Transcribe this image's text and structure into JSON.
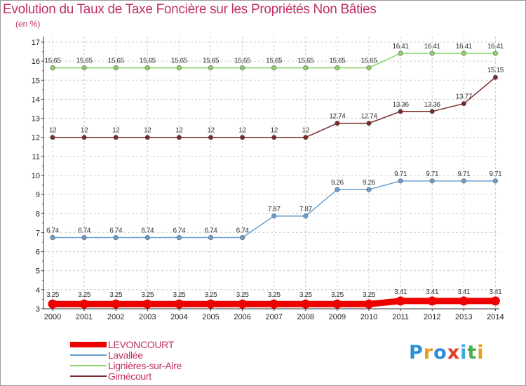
{
  "title": "Evolution du Taux de Taxe Foncière sur les Propriétés Non Bâties",
  "subtitle": "(en %)",
  "logo": {
    "text": "Proxiti",
    "colors": [
      "#2a8fd6",
      "#e8a020",
      "#2a8fd6",
      "#e23b2a",
      "#39a9dc",
      "#49b04a",
      "#e8a020"
    ]
  },
  "chart_data": {
    "type": "line",
    "title": "Evolution du Taux de Taxe Foncière sur les Propriétés Non Bâties",
    "ylabel": "(en %)",
    "xlabel": "",
    "ylim": [
      3,
      17
    ],
    "yticks": [
      "3",
      "4",
      "5",
      "6",
      "7",
      "8",
      "9",
      "10",
      "11",
      "12",
      "13",
      "14",
      "15",
      "16",
      "17"
    ],
    "categories": [
      "2000",
      "2001",
      "2002",
      "2003",
      "2004",
      "2005",
      "2006",
      "2007",
      "2008",
      "2009",
      "2010",
      "2011",
      "2012",
      "2013",
      "2014"
    ],
    "series": [
      {
        "name": "LEVONCOURT",
        "color": "#ee0000",
        "width": "bold",
        "values": [
          3.25,
          3.25,
          3.25,
          3.25,
          3.25,
          3.25,
          3.25,
          3.25,
          3.25,
          3.25,
          3.25,
          3.41,
          3.41,
          3.41,
          3.41
        ],
        "labels": [
          "3.25",
          "3.25",
          "3.25",
          "3.25",
          "3.25",
          "3.25",
          "3.25",
          "3.25",
          "3.25",
          "3.25",
          "3.25",
          "3.41",
          "3.41",
          "3.41",
          "3.41"
        ]
      },
      {
        "name": "Lavallée",
        "color": "#6b9fcf",
        "width": "normal",
        "values": [
          6.74,
          6.74,
          6.74,
          6.74,
          6.74,
          6.74,
          6.74,
          7.87,
          7.87,
          9.26,
          9.26,
          9.71,
          9.71,
          9.71,
          9.71
        ],
        "labels": [
          "6.74",
          "6.74",
          "6.74",
          "6.74",
          "6.74",
          "6.74",
          "6.74",
          "7.87",
          "7.87",
          "9.26",
          "9.26",
          "9.71",
          "9.71",
          "9.71",
          "9.71"
        ]
      },
      {
        "name": "Lignières-sur-Aire",
        "color": "#8ed36a",
        "width": "normal",
        "values": [
          15.65,
          15.65,
          15.65,
          15.65,
          15.65,
          15.65,
          15.65,
          15.65,
          15.65,
          15.65,
          15.65,
          16.41,
          16.41,
          16.41,
          16.41
        ],
        "labels": [
          "15.65",
          "15.65",
          "15.65",
          "15.65",
          "15.65",
          "15.65",
          "15.65",
          "15.65",
          "15.65",
          "15.65",
          "15.65",
          "16.41",
          "16.41",
          "16.41",
          "16.41"
        ]
      },
      {
        "name": "Gimécourt",
        "color": "#7a2a2a",
        "width": "normal",
        "values": [
          12,
          12,
          12,
          12,
          12,
          12,
          12,
          12,
          12,
          12.74,
          12.74,
          13.36,
          13.36,
          13.77,
          15.15
        ],
        "labels": [
          "12",
          "12",
          "12",
          "12",
          "12",
          "12",
          "12",
          "12",
          "12",
          "12.74",
          "12.74",
          "13.36",
          "13.36",
          "13.77",
          "15.15"
        ]
      }
    ],
    "grid": true,
    "legend_position": "bottom-left"
  }
}
